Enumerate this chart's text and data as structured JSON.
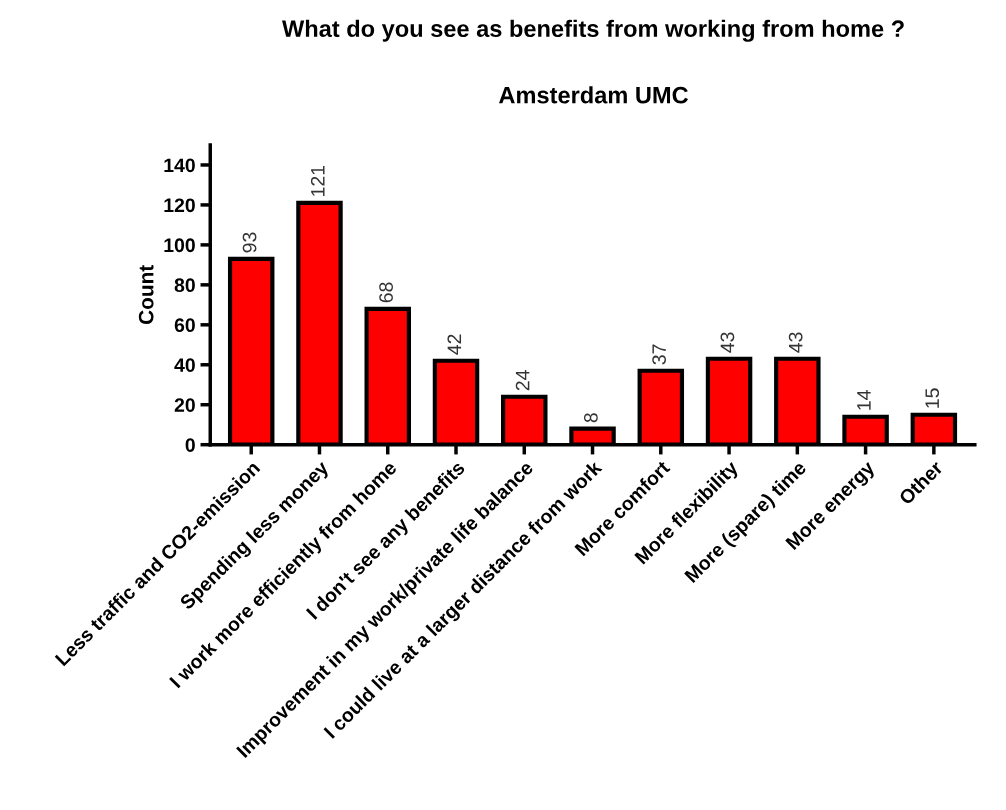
{
  "chart_data": {
    "type": "bar",
    "title": "What do you see as benefits from working from home ?",
    "subtitle": "Amsterdam UMC",
    "ylabel": "Count",
    "categories": [
      "Less traffic and CO2-emission",
      "Spending less money",
      "I work more efficiently from home",
      "I don't see any benefits",
      "Improvement in my work/private life balance",
      "I could live at a larger distance from work",
      "More comfort",
      "More flexibility",
      "More (spare) time",
      "More energy",
      "Other"
    ],
    "values": [
      93,
      121,
      68,
      42,
      24,
      8,
      37,
      43,
      43,
      14,
      15
    ],
    "color": "#ff0000",
    "ylim": [
      0,
      150
    ],
    "yticks": [
      0,
      20,
      40,
      60,
      80,
      100,
      120,
      140
    ],
    "grid": false,
    "data_labels": true
  }
}
